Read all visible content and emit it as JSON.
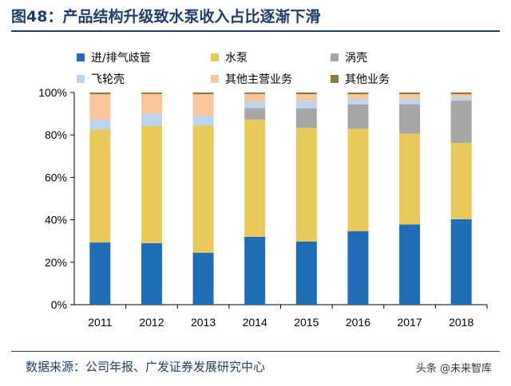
{
  "figure": {
    "title": "图48：产品结构升级致水泵收入占比逐渐下滑",
    "source": "数据来源：公司年报、广发证券发展研究中心",
    "watermark": "头条 @未来智库"
  },
  "chart_data": {
    "type": "bar",
    "stacked": true,
    "categories": [
      "2011",
      "2012",
      "2013",
      "2014",
      "2015",
      "2016",
      "2017",
      "2018"
    ],
    "ylim": [
      0,
      100
    ],
    "yticks": [
      "0%",
      "20%",
      "40%",
      "60%",
      "80%",
      "100%"
    ],
    "grid": false,
    "legend_position": "top",
    "series": [
      {
        "name": "进/排气歧管",
        "color": "#1f6db4",
        "values": [
          29.3,
          29.0,
          24.5,
          32.0,
          29.8,
          34.6,
          37.8,
          40.3
        ]
      },
      {
        "name": "水泵",
        "color": "#e8c95a",
        "values": [
          53.2,
          55.2,
          59.9,
          55.3,
          53.5,
          48.3,
          42.8,
          36.0
        ]
      },
      {
        "name": "涡壳",
        "color": "#a6a6a6",
        "values": [
          0.0,
          0.0,
          0.0,
          5.4,
          9.3,
          11.5,
          13.9,
          19.9
        ]
      },
      {
        "name": "飞轮壳",
        "color": "#bdd3ee",
        "values": [
          4.8,
          5.9,
          4.7,
          3.1,
          3.5,
          2.4,
          2.3,
          1.5
        ]
      },
      {
        "name": "其他主营业务",
        "color": "#f9c69b",
        "values": [
          11.9,
          9.2,
          10.1,
          3.5,
          3.1,
          2.4,
          2.4,
          1.5
        ]
      },
      {
        "name": "其他业务",
        "color": "#8c7a3c",
        "values": [
          0.8,
          0.7,
          0.8,
          0.7,
          0.8,
          0.8,
          0.8,
          0.8
        ]
      }
    ]
  }
}
